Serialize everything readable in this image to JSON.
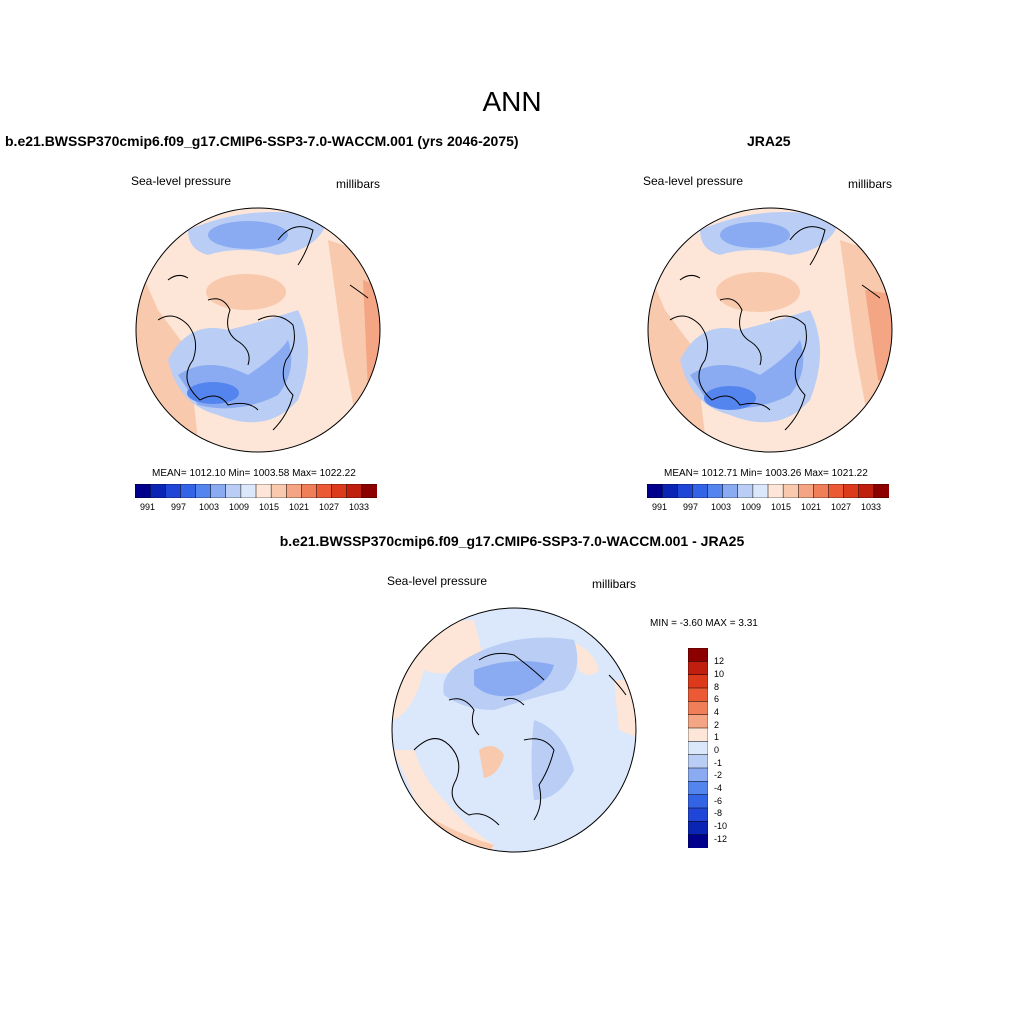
{
  "title": "ANN",
  "panels": {
    "model": {
      "title": "b.e21.BWSSP370cmip6.f09_g17.CMIP6-SSP3-7.0-WACCM.001 (yrs 2046-2075)",
      "variable": "Sea-level pressure",
      "units": "millibars",
      "stats": "MEAN= 1012.10  Min= 1003.58  Max= 1022.22"
    },
    "obs": {
      "title": "JRA25",
      "variable": "Sea-level pressure",
      "units": "millibars",
      "stats": "MEAN= 1012.71  Min= 1003.26  Max= 1021.22"
    },
    "diff": {
      "title": "b.e21.BWSSP370cmip6.f09_g17.CMIP6-SSP3-7.0-WACCM.001 - JRA25",
      "variable": "Sea-level pressure",
      "units": "millibars",
      "stats": "MIN =  -3.60 MAX =   3.31"
    }
  },
  "colorbars": {
    "absolute": {
      "colors": [
        "#00008c",
        "#0a24b4",
        "#1f46d6",
        "#3364e6",
        "#5485ee",
        "#8aabf2",
        "#b9cdf5",
        "#dbe7fb",
        "#fde6d7",
        "#f8c9ad",
        "#f4a583",
        "#f07e59",
        "#eb5a35",
        "#dc3a1b",
        "#c01e0e",
        "#8c0000"
      ],
      "labels": [
        "991",
        "997",
        "1003",
        "1009",
        "1015",
        "1021",
        "1027",
        "1033"
      ]
    },
    "difference": {
      "colors": [
        "#8c0000",
        "#c01e0e",
        "#dc3a1b",
        "#eb5a35",
        "#f07e59",
        "#f4a583",
        "#fde6d7",
        "#dbe7fb",
        "#b9cdf5",
        "#8aabf2",
        "#5485ee",
        "#3364e6",
        "#1f46d6",
        "#0a24b4",
        "#00008c"
      ],
      "labels": [
        "12",
        "10",
        "8",
        "6",
        "4",
        "2",
        "1",
        "0",
        "-1",
        "-2",
        "-4",
        "-6",
        "-8",
        "-10",
        "-12"
      ]
    }
  }
}
